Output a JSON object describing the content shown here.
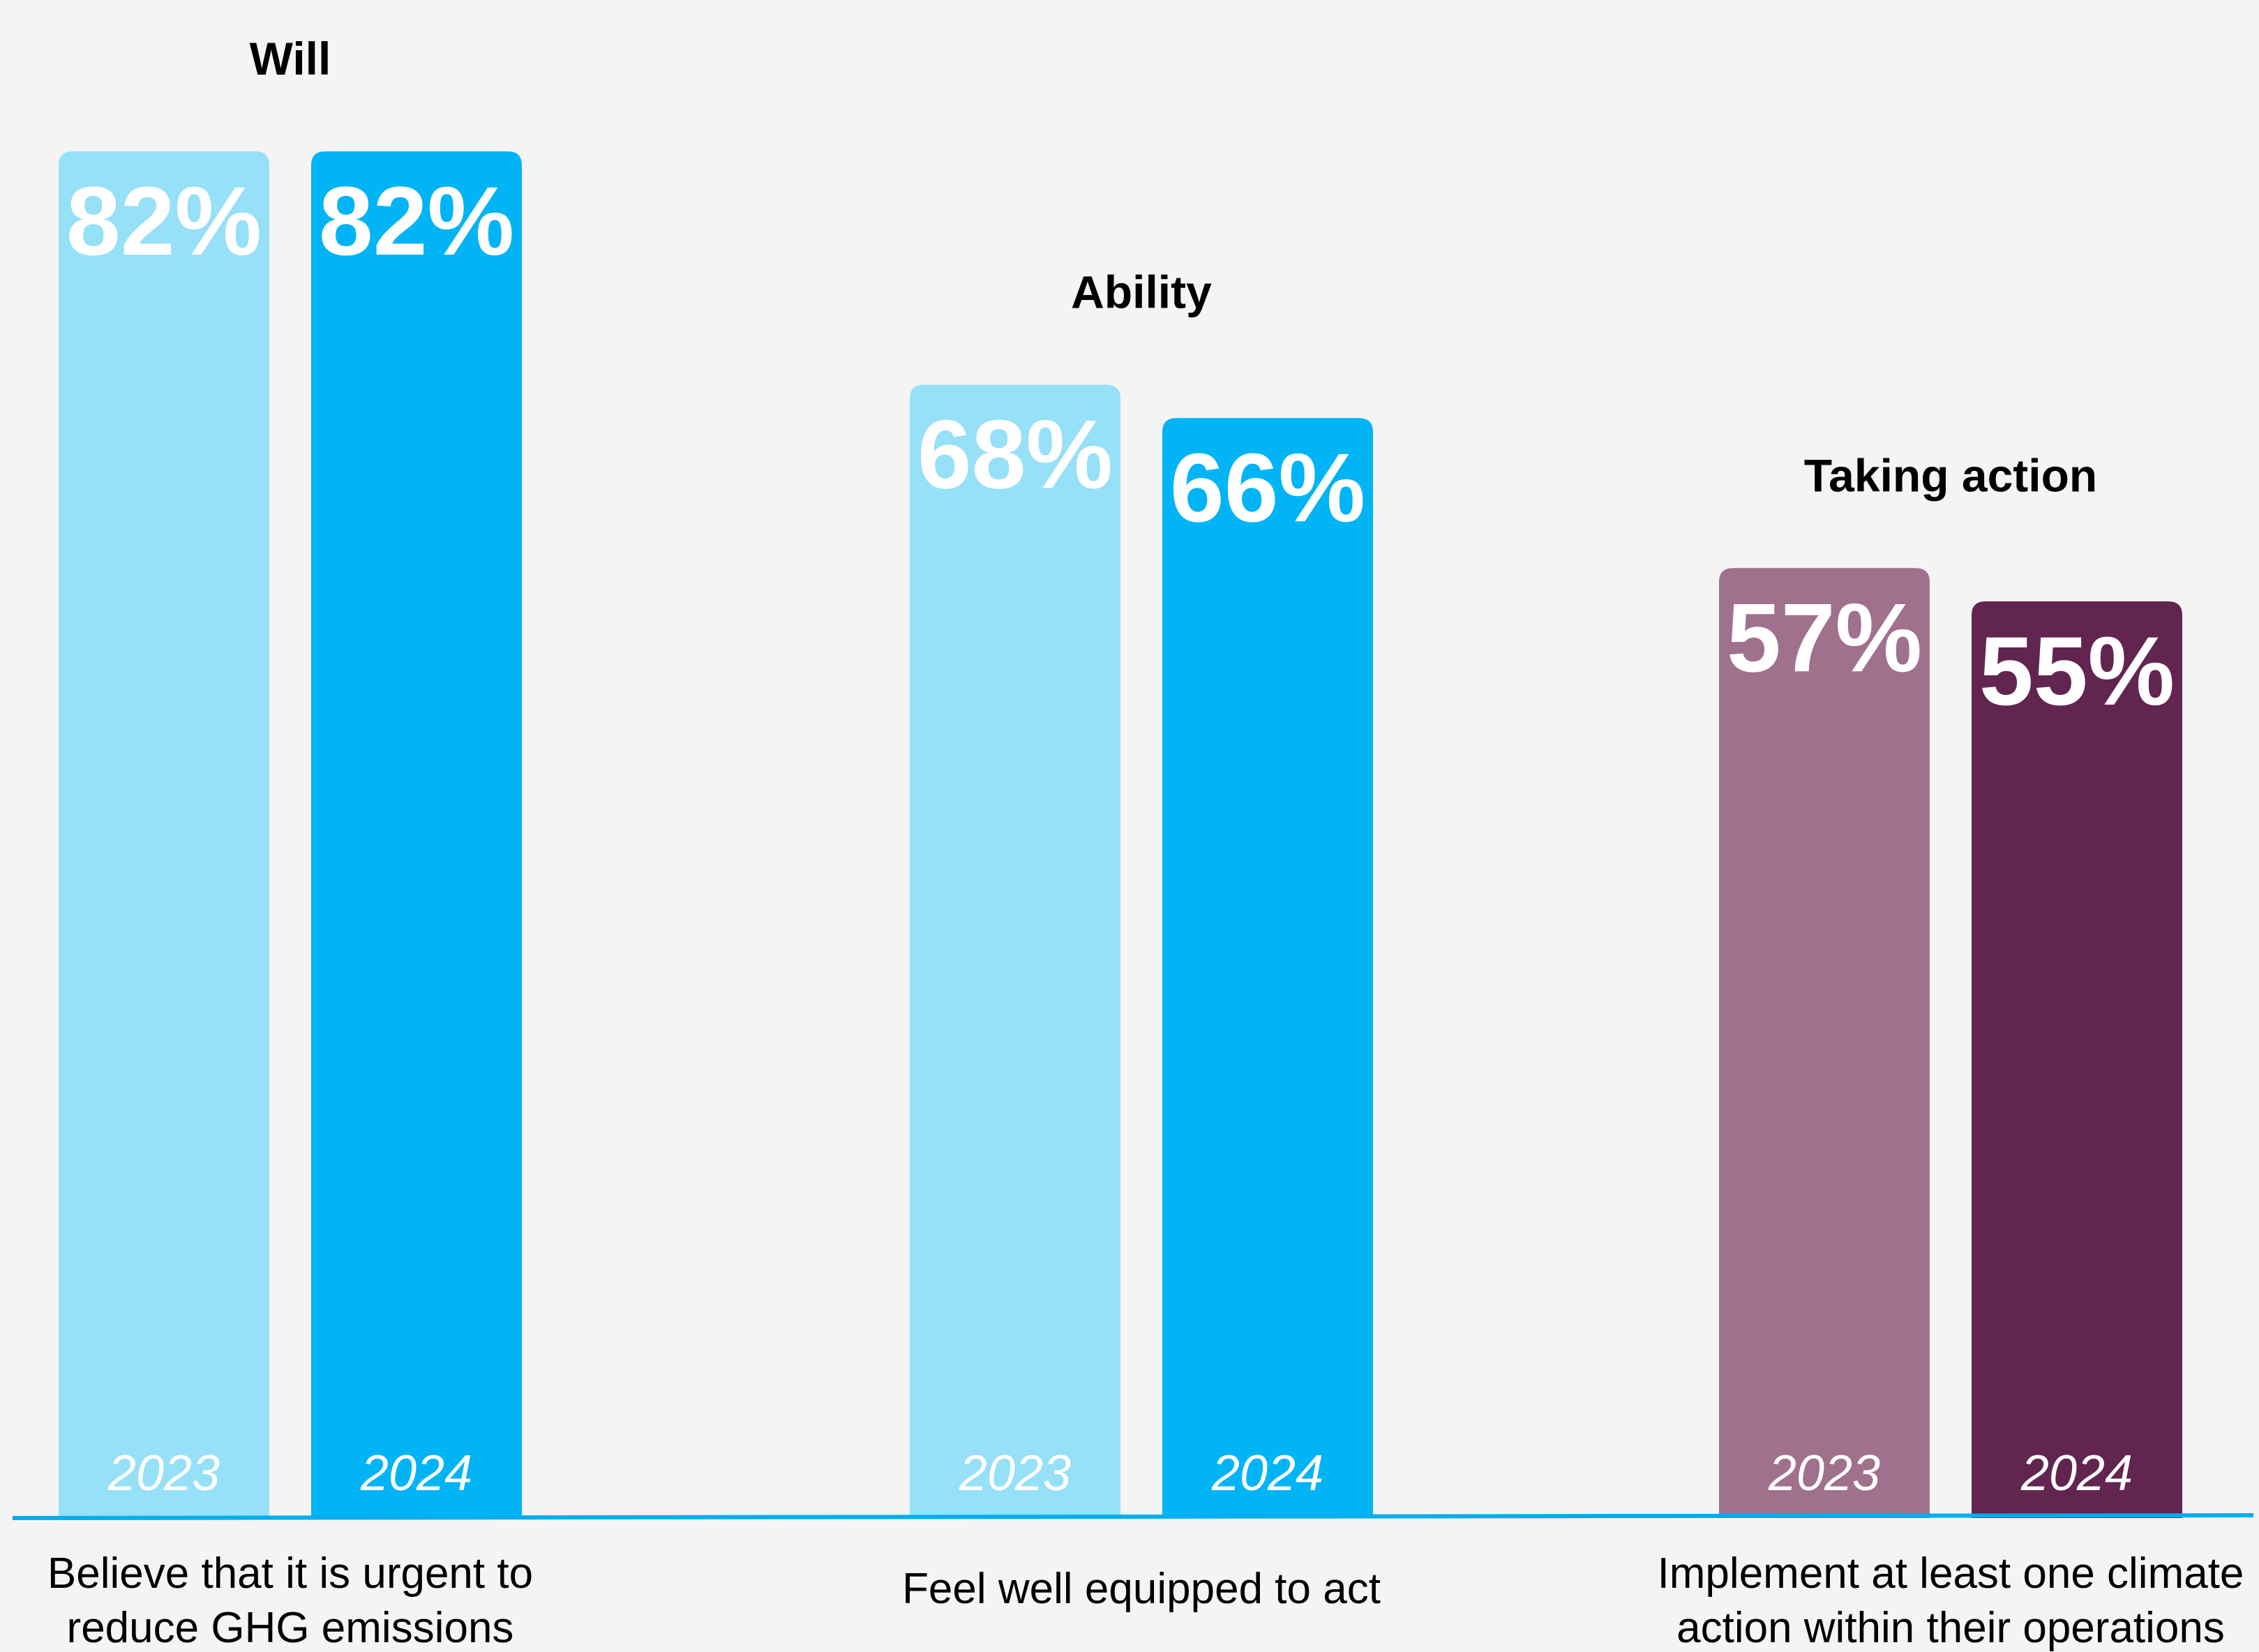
{
  "chart_data": {
    "type": "bar",
    "ylim": [
      0,
      100
    ],
    "groups": [
      {
        "title": "Will",
        "category_lines": [
          "Believe that it is urgent to",
          "reduce GHG emissions"
        ],
        "bars": [
          {
            "year": "2023",
            "value": 82,
            "label": "82%",
            "color": "#96e0f8"
          },
          {
            "year": "2024",
            "value": 82,
            "label": "82%",
            "color": "#00b4f5"
          }
        ]
      },
      {
        "title": "Ability",
        "category_lines": [
          "Feel well equipped to act"
        ],
        "bars": [
          {
            "year": "2023",
            "value": 68,
            "label": "68%",
            "color": "#96e0f8"
          },
          {
            "year": "2024",
            "value": 66,
            "label": "66%",
            "color": "#00b4f5"
          }
        ]
      },
      {
        "title": "Taking action",
        "category_lines": [
          "Implement at least one climate",
          "action within their operations"
        ],
        "bars": [
          {
            "year": "2023",
            "value": 57,
            "label": "57%",
            "color": "#9f718c"
          },
          {
            "year": "2024",
            "value": 55,
            "label": "55%",
            "color": "#62254f"
          }
        ]
      }
    ],
    "baseline_color": "#00aeef"
  }
}
